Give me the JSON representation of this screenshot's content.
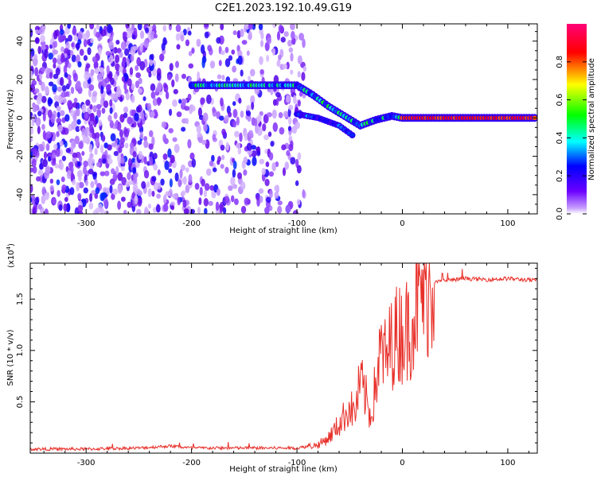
{
  "title": "C2E1.2023.192.10.49.G19",
  "chart_data": [
    {
      "type": "heatmap",
      "xlabel": "Height of straight line (km)",
      "ylabel": "Frequency (Hz)",
      "xlim": [
        -353,
        128
      ],
      "ylim": [
        -50,
        49
      ],
      "x_ticks": [
        -300,
        -200,
        -100,
        0,
        100
      ],
      "y_ticks": [
        -40,
        -20,
        0,
        20,
        40
      ],
      "colorbar": {
        "label": "Normalized spectral amplitude",
        "range": [
          0,
          1
        ],
        "ticks": [
          0.0,
          0.2,
          0.4,
          0.6,
          0.8
        ],
        "colors": [
          "#ffffff",
          "#6a00ff",
          "#0000ff",
          "#00ffff",
          "#00ff00",
          "#ffff00",
          "#ff0000",
          "#ff0077"
        ]
      },
      "noise_region_x": [
        -353,
        -92
      ],
      "dominant_frequency_track": [
        {
          "x": -200,
          "f": 17
        },
        {
          "x": -160,
          "f": 17
        },
        {
          "x": -120,
          "f": 17
        },
        {
          "x": -100,
          "f": 17
        },
        {
          "x": -85,
          "f": 12
        },
        {
          "x": -70,
          "f": 6
        },
        {
          "x": -55,
          "f": 1
        },
        {
          "x": -40,
          "f": -4
        },
        {
          "x": -25,
          "f": -1
        },
        {
          "x": -10,
          "f": 1
        },
        {
          "x": 0,
          "f": 0
        },
        {
          "x": 50,
          "f": 0
        },
        {
          "x": 128,
          "f": 0
        }
      ],
      "secondary_track": [
        {
          "x": -100,
          "f": 2
        },
        {
          "x": -80,
          "f": 0
        },
        {
          "x": -60,
          "f": -4
        },
        {
          "x": -45,
          "f": -10
        }
      ]
    },
    {
      "type": "line",
      "xlabel": "Height of straight line (km)",
      "ylabel": "SNR (10 * v/v)",
      "multiplier_label": "(x10",
      "multiplier_exponent": "4",
      "multiplier_suffix": ")",
      "xlim": [
        -353,
        128
      ],
      "ylim": [
        0,
        1.85
      ],
      "x_ticks": [
        -300,
        -200,
        -100,
        0,
        100
      ],
      "y_ticks": [
        0.5,
        1.0,
        1.5
      ],
      "y_tick_labels": [
        "0.5",
        "1.0",
        "1.5"
      ],
      "series_color": "#e8302a",
      "series": [
        {
          "x": [
            -353,
            -300,
            -250,
            -220,
            -200,
            -160,
            -130,
            -100,
            -80,
            -70,
            -60,
            -50,
            -45,
            -40,
            -35,
            -30,
            -25,
            -20,
            -15,
            -10,
            -5,
            0,
            5,
            10,
            15,
            20,
            25,
            30,
            40,
            60,
            80,
            100,
            128
          ],
          "y": [
            0.04,
            0.04,
            0.05,
            0.07,
            0.05,
            0.05,
            0.05,
            0.05,
            0.08,
            0.15,
            0.28,
            0.45,
            0.38,
            0.7,
            0.55,
            0.35,
            0.7,
            1.0,
            0.9,
            1.1,
            1.15,
            1.2,
            1.2,
            1.35,
            1.5,
            1.58,
            1.63,
            1.66,
            1.68,
            1.7,
            1.69,
            1.7,
            1.68
          ]
        }
      ]
    }
  ]
}
